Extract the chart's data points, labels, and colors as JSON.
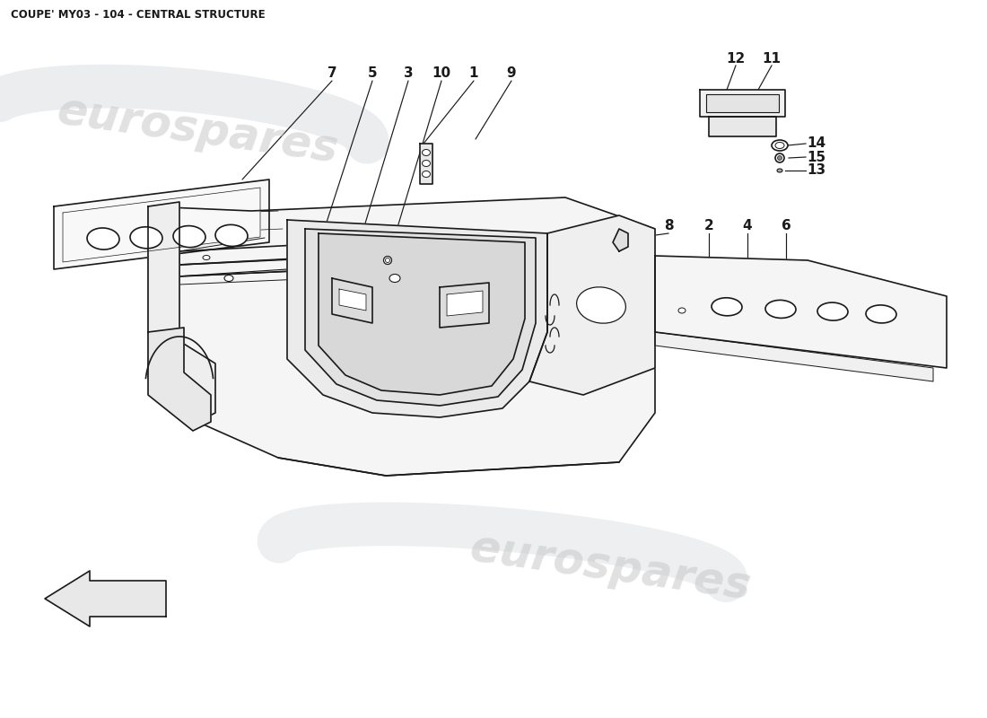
{
  "title": "COUPE' MY03 - 104 - CENTRAL STRUCTURE",
  "title_fontsize": 8.5,
  "title_fontweight": "bold",
  "bg_color": "#ffffff",
  "line_color": "#1a1a1a",
  "watermark_text": "eurospares",
  "watermark_color": "#c8c8c8",
  "label_fontsize": 11,
  "label_fontweight": "bold",
  "lw_main": 1.2,
  "lw_thin": 0.7
}
